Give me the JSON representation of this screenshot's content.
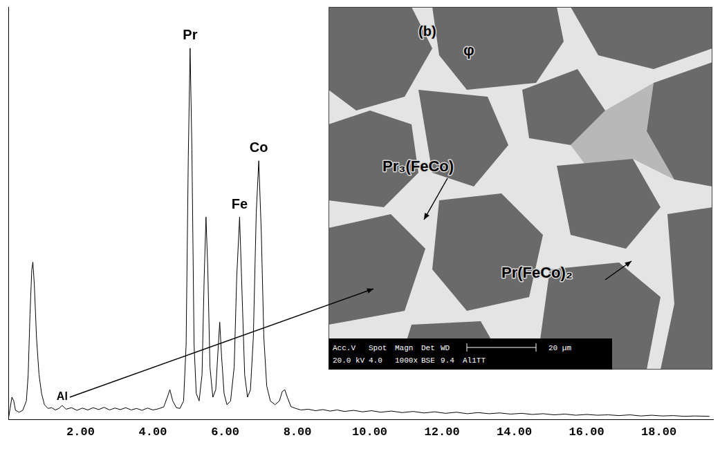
{
  "chart_data": {
    "type": "line",
    "color": "#000000",
    "x": [
      0.0,
      0.05,
      0.1,
      0.15,
      0.2,
      0.3,
      0.4,
      0.5,
      0.55,
      0.6,
      0.65,
      0.68,
      0.72,
      0.78,
      0.85,
      0.92,
      1.0,
      1.1,
      1.2,
      1.3,
      1.4,
      1.49,
      1.6,
      1.75,
      1.9,
      2.05,
      2.2,
      2.35,
      2.5,
      2.65,
      2.8,
      2.95,
      3.1,
      3.25,
      3.4,
      3.55,
      3.7,
      3.85,
      4.0,
      4.15,
      4.3,
      4.4,
      4.47,
      4.55,
      4.65,
      4.75,
      4.85,
      4.92,
      4.98,
      5.03,
      5.08,
      5.14,
      5.2,
      5.28,
      5.36,
      5.42,
      5.47,
      5.52,
      5.58,
      5.66,
      5.74,
      5.8,
      5.85,
      5.9,
      5.97,
      6.05,
      6.15,
      6.25,
      6.32,
      6.4,
      6.46,
      6.54,
      6.62,
      6.7,
      6.78,
      6.86,
      6.93,
      7.0,
      7.07,
      7.15,
      7.25,
      7.38,
      7.5,
      7.58,
      7.65,
      7.72,
      7.82,
      7.95,
      8.1,
      8.3,
      8.5,
      8.7,
      8.9,
      9.1,
      9.3,
      9.55,
      9.8,
      10.05,
      10.3,
      10.6,
      10.9,
      11.2,
      11.5,
      11.8,
      12.1,
      12.4,
      12.7,
      13.0,
      13.3,
      13.6,
      13.9,
      14.2,
      14.5,
      14.8,
      15.1,
      15.4,
      15.7,
      16.0,
      16.3,
      16.6,
      16.9,
      17.2,
      17.5,
      17.8,
      18.1,
      18.4,
      18.7,
      19.0,
      19.4
    ],
    "values": [
      0,
      3,
      6,
      5,
      2.5,
      2,
      2.5,
      5,
      12,
      28,
      40,
      42,
      36,
      22,
      12,
      7,
      4,
      3,
      3.2,
      2.6,
      3,
      3.8,
      2.8,
      3.2,
      2.5,
      3.1,
      2.6,
      3.2,
      2.7,
      3.3,
      2.6,
      3.1,
      2.7,
      3.2,
      2.6,
      3.0,
      2.5,
      3.1,
      2.6,
      2.9,
      3.4,
      6,
      8,
      5,
      3.2,
      3.0,
      5,
      20,
      70,
      99,
      72,
      20,
      7,
      5,
      12,
      38,
      54,
      40,
      14,
      6,
      8,
      18,
      26,
      17,
      7,
      4,
      5,
      14,
      38,
      54,
      36,
      12,
      6,
      8,
      22,
      55,
      69,
      50,
      22,
      9,
      5,
      4,
      5,
      7.5,
      8,
      6,
      3.5,
      3,
      2.6,
      2.8,
      2.4,
      2.7,
      2.3,
      2.6,
      2.2,
      2.5,
      2.1,
      2.4,
      2.0,
      2.3,
      1.9,
      2.2,
      1.8,
      2.1,
      1.7,
      2.0,
      1.6,
      1.9,
      1.6,
      1.8,
      1.5,
      1.7,
      1.4,
      1.6,
      1.3,
      1.5,
      1.2,
      1.4,
      1.2,
      1.3,
      1.1,
      1.3,
      1.0,
      1.2,
      1.0,
      1.1,
      0.9,
      1.0,
      0.9
    ],
    "xlim": [
      0,
      19.5
    ],
    "xticks": [
      {
        "value": 2,
        "label": "2.00"
      },
      {
        "value": 4,
        "label": "4.00"
      },
      {
        "value": 6,
        "label": "6.00"
      },
      {
        "value": 8,
        "label": "8.00"
      },
      {
        "value": 10,
        "label": "10.00"
      },
      {
        "value": 12,
        "label": "12.00"
      },
      {
        "value": 14,
        "label": "14.00"
      },
      {
        "value": 16,
        "label": "16.00"
      },
      {
        "value": 18,
        "label": "18.00"
      }
    ],
    "ylim": [
      0,
      110
    ],
    "grid": false,
    "tick_labels": "x",
    "annotations": [
      {
        "text": "Pr",
        "x": 5.03,
        "y": 99
      },
      {
        "text": "Fe",
        "x": 6.4,
        "y": 54
      },
      {
        "text": "Co",
        "x": 6.93,
        "y": 69
      },
      {
        "text": "Al",
        "x": 1.49,
        "y": 3.8
      }
    ]
  },
  "inset": {
    "panel_label": "(b)",
    "phase_labels": [
      "φ",
      "Pr₃(FeCo)",
      "Pr(FeCo)₂"
    ],
    "info_bar": {
      "header": [
        "Acc.V",
        "Spot",
        "Magn",
        "Det",
        "WD"
      ],
      "values": [
        "20.0 kV",
        "4.0",
        "1000x",
        "BSE",
        "9.4",
        "Al1TT"
      ],
      "scale_bar": "20 µm"
    }
  }
}
